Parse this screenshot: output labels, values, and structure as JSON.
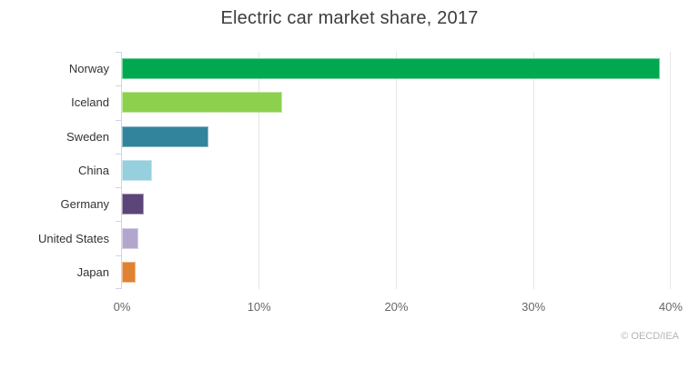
{
  "title": "Electric car market share, 2017",
  "credit": "© OECD/IEA",
  "chart_data": {
    "type": "bar",
    "orientation": "horizontal",
    "title": "Electric car market share, 2017",
    "categories": [
      "Norway",
      "Iceland",
      "Sweden",
      "China",
      "Germany",
      "United States",
      "Japan"
    ],
    "values": [
      39.2,
      11.7,
      6.3,
      2.2,
      1.6,
      1.2,
      1.0
    ],
    "unit": "%",
    "bar_colors": [
      "#00a850",
      "#8cd04e",
      "#31849b",
      "#96cfdd",
      "#5c4579",
      "#b3a6cd",
      "#e08231"
    ],
    "xlabel": "",
    "ylabel": "",
    "xlim": [
      0,
      41
    ],
    "ticks": [
      0,
      10,
      20,
      30,
      40
    ],
    "tick_labels": [
      "0%",
      "10%",
      "20%",
      "30%",
      "40%"
    ],
    "grid": true,
    "legend": false,
    "credit": "© OECD/IEA"
  },
  "colors": {
    "background": "#ffffff",
    "axis_line": "#ccd6eb",
    "gridline": "#e6e6e6",
    "title_text": "#3c3c3c",
    "category_text": "#333333",
    "tick_text": "#666666",
    "credit_text": "#b4b4b4"
  }
}
